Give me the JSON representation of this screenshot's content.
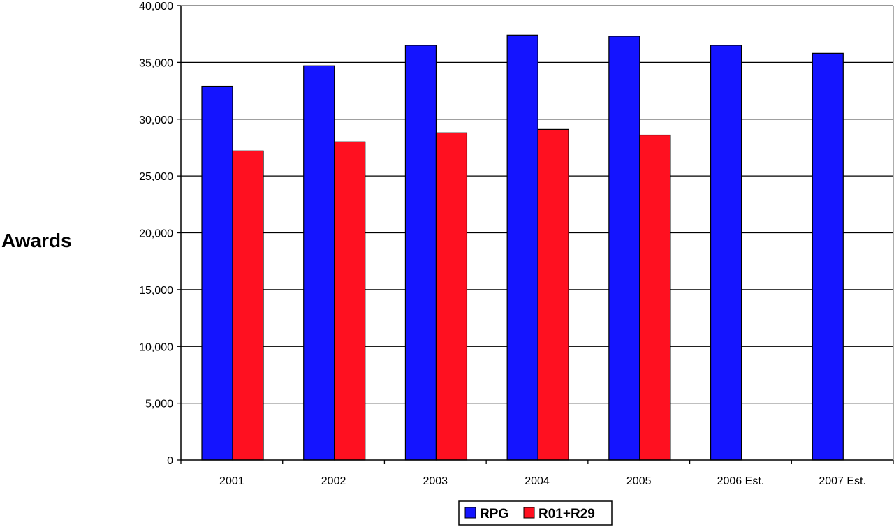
{
  "chart_data": {
    "type": "bar",
    "ylabel": "Awards",
    "xlabel": "",
    "categories": [
      "2001",
      "2002",
      "2003",
      "2004",
      "2005",
      "2006 Est.",
      "2007 Est."
    ],
    "series": [
      {
        "name": "RPG",
        "color": "#1414ff",
        "values": [
          32900,
          34700,
          36500,
          37400,
          37300,
          36500,
          35800
        ]
      },
      {
        "name": "R01+R29",
        "color": "#ff1020",
        "values": [
          27200,
          28000,
          28800,
          29100,
          28600,
          null,
          null
        ]
      }
    ],
    "ylim": [
      0,
      40000
    ],
    "yticks": [
      0,
      5000,
      10000,
      15000,
      20000,
      25000,
      30000,
      35000,
      40000
    ],
    "ytick_labels": [
      "0",
      "5,000",
      "10,000",
      "15,000",
      "20,000",
      "25,000",
      "30,000",
      "35,000",
      "40,000"
    ],
    "grid": true,
    "legend_position": "bottom-center"
  }
}
